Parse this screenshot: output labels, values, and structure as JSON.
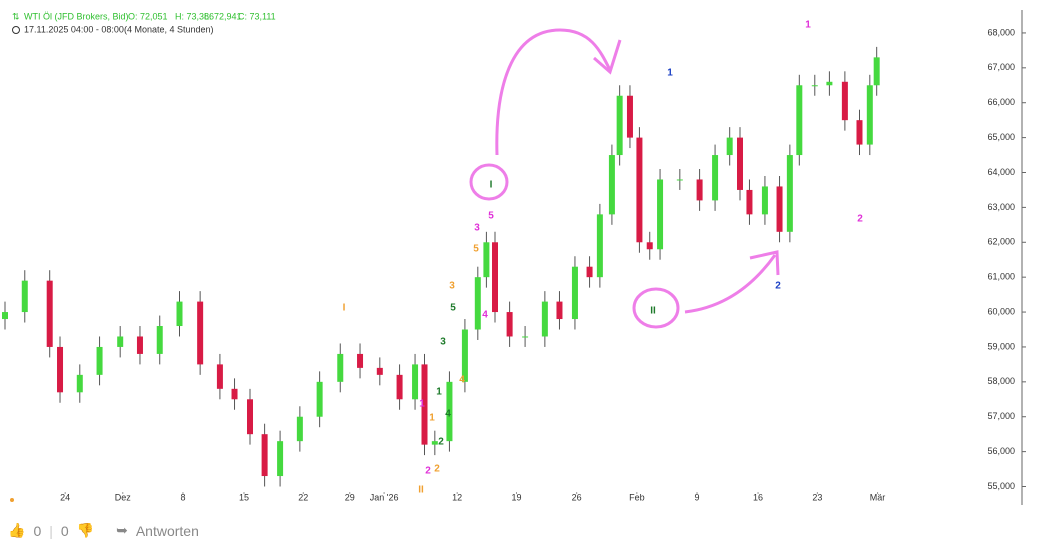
{
  "header": {
    "symbol": "WTI Öl (JFD Brokers, Bid)",
    "ohlc": [
      "O: 72,051",
      "H: 73,386",
      "L: 72,941",
      "C: 73,111"
    ],
    "timeframe": "17.11.2025 04:00 - 08:00",
    "range": "(4 Monate, 4 Stunden)"
  },
  "chart_data": {
    "type": "candlestick",
    "x": [
      0,
      2.3,
      5.2,
      6.4,
      8.7,
      11,
      13.4,
      15.7,
      18,
      20.3,
      22.7,
      25,
      26.7,
      28.5,
      30.2,
      32,
      34.3,
      36.6,
      39,
      41.3,
      43.6,
      45.9,
      47.7,
      48.8,
      50,
      51.7,
      53.5,
      55,
      56,
      57,
      58.7,
      60.5,
      62.8,
      64.5,
      66.3,
      68,
      69.2,
      70.6,
      71.5,
      72.7,
      73.8,
      75,
      76.2,
      78.5,
      80.8,
      82.6,
      84.3,
      85.5,
      86.6,
      88.4,
      90.1,
      91.3,
      92.4,
      94.2,
      95.9,
      97.7,
      99.4,
      100.6,
      101.4
    ],
    "open": [
      59800,
      60000,
      60900,
      59000,
      57700,
      58200,
      59000,
      59300,
      58800,
      59600,
      60300,
      58500,
      57800,
      57500,
      56500,
      55300,
      56300,
      57000,
      58000,
      58800,
      58400,
      58200,
      57500,
      58500,
      56200,
      56300,
      58000,
      59500,
      61000,
      62000,
      60000,
      59300,
      59300,
      60300,
      59800,
      61300,
      61000,
      62800,
      64500,
      66200,
      65000,
      62000,
      61800,
      63800,
      63800,
      63200,
      64500,
      65000,
      63500,
      62800,
      63600,
      62300,
      64500,
      66500,
      66500,
      66600,
      65500,
      64800,
      66500
    ],
    "high": [
      60300,
      61200,
      61200,
      59300,
      58500,
      59300,
      59600,
      59600,
      59900,
      60600,
      60600,
      58800,
      58100,
      57800,
      56800,
      56600,
      57300,
      58300,
      59100,
      59100,
      58700,
      58500,
      58800,
      58800,
      56600,
      58300,
      59800,
      61300,
      62300,
      62300,
      60300,
      59600,
      60600,
      60600,
      61600,
      61600,
      63100,
      64800,
      66500,
      66500,
      65300,
      62300,
      64100,
      64100,
      64100,
      64800,
      65300,
      65300,
      63800,
      63900,
      63900,
      64800,
      66800,
      66800,
      66900,
      66900,
      65800,
      66800,
      67600
    ],
    "low": [
      59500,
      59700,
      58700,
      57400,
      57400,
      57900,
      58700,
      58500,
      58500,
      59300,
      58200,
      57500,
      57200,
      56200,
      55000,
      55000,
      56000,
      56700,
      57700,
      58100,
      57900,
      57200,
      57200,
      55900,
      55900,
      56000,
      57700,
      59200,
      60700,
      59700,
      59000,
      59000,
      59000,
      59500,
      59500,
      60700,
      60700,
      62500,
      64200,
      64700,
      61700,
      61500,
      61500,
      63500,
      62900,
      62900,
      64200,
      63200,
      62500,
      62500,
      62000,
      62000,
      64200,
      66200,
      66200,
      65200,
      64500,
      64500,
      66200
    ],
    "close": [
      60000,
      60900,
      59000,
      57700,
      58200,
      59000,
      59300,
      58800,
      59600,
      60300,
      58500,
      57800,
      57500,
      56500,
      55300,
      56300,
      57000,
      58000,
      58800,
      58400,
      58200,
      57500,
      58500,
      56200,
      56300,
      58000,
      59500,
      61000,
      62000,
      60000,
      59300,
      59300,
      60300,
      59800,
      61300,
      61000,
      62800,
      64500,
      66200,
      65000,
      62000,
      61800,
      63800,
      63800,
      63200,
      64500,
      65000,
      63500,
      62800,
      63600,
      62300,
      64500,
      66500,
      66500,
      66600,
      65500,
      64800,
      66500,
      67300
    ],
    "up_color": "#45d93f",
    "down_color": "#d81b45",
    "ylim": [
      54900,
      68600
    ],
    "yticks": [
      {
        "value": 55000,
        "label": "55,000"
      },
      {
        "value": 56000,
        "label": "56,000"
      },
      {
        "value": 57000,
        "label": "57,000"
      },
      {
        "value": 58000,
        "label": "58,000"
      },
      {
        "value": 59000,
        "label": "59,000"
      },
      {
        "value": 60000,
        "label": "60,000"
      },
      {
        "value": 61000,
        "label": "61,000"
      },
      {
        "value": 62000,
        "label": "62,000"
      },
      {
        "value": 63000,
        "label": "63,000"
      },
      {
        "value": 64000,
        "label": "64,000"
      },
      {
        "value": 65000,
        "label": "65,000"
      },
      {
        "value": 66000,
        "label": "66,000"
      },
      {
        "value": 67000,
        "label": "67,000"
      },
      {
        "value": 68000,
        "label": "68,000"
      }
    ],
    "xlim": [
      0,
      114
    ],
    "xticks": [
      {
        "value": 7,
        "label": "24"
      },
      {
        "value": 13.7,
        "label": "Dez"
      },
      {
        "value": 20.7,
        "label": "8"
      },
      {
        "value": 27.8,
        "label": "15"
      },
      {
        "value": 34.7,
        "label": "22"
      },
      {
        "value": 40.1,
        "label": "29"
      },
      {
        "value": 44.1,
        "label": "Jan '26"
      },
      {
        "value": 52.6,
        "label": "12"
      },
      {
        "value": 59.5,
        "label": "19"
      },
      {
        "value": 66.5,
        "label": "26"
      },
      {
        "value": 73.5,
        "label": "Feb"
      },
      {
        "value": 80.5,
        "label": "9"
      },
      {
        "value": 87.6,
        "label": "16"
      },
      {
        "value": 94.5,
        "label": "23"
      },
      {
        "value": 101.5,
        "label": "Mär"
      }
    ],
    "annotations": [
      {
        "text": "1",
        "color": "#e030d8"
      },
      {
        "text": "1",
        "color": "#1a3fc4"
      },
      {
        "text": "I",
        "color": "#1d7a2a"
      },
      {
        "text": "5",
        "color": "#e030d8"
      },
      {
        "text": "3",
        "color": "#e030d8"
      },
      {
        "text": "5",
        "color": "#f0a030"
      },
      {
        "text": "I",
        "color": "#f0a030"
      },
      {
        "text": "3",
        "color": "#f0a030"
      },
      {
        "text": "5",
        "color": "#1d7a2a"
      },
      {
        "text": "4",
        "color": "#e030d8"
      },
      {
        "text": "3",
        "color": "#1d7a2a"
      },
      {
        "text": "4",
        "color": "#f0a030"
      },
      {
        "text": "1",
        "color": "#1d7a2a"
      },
      {
        "text": "1",
        "color": "#e030d8"
      },
      {
        "text": "1",
        "color": "#f0a030"
      },
      {
        "text": "4",
        "color": "#1d7a2a"
      },
      {
        "text": "2",
        "color": "#1d7a2a"
      },
      {
        "text": "2",
        "color": "#e030d8"
      },
      {
        "text": "2",
        "color": "#f0a030"
      },
      {
        "text": "II",
        "color": "#f0a030"
      },
      {
        "text": "II",
        "color": "#1d7a2a"
      },
      {
        "text": "2",
        "color": "#1a3fc4"
      },
      {
        "text": "2",
        "color": "#e030d8"
      }
    ]
  },
  "footer": {
    "likes": "0",
    "dislikes": "0",
    "reply": "Antworten"
  }
}
